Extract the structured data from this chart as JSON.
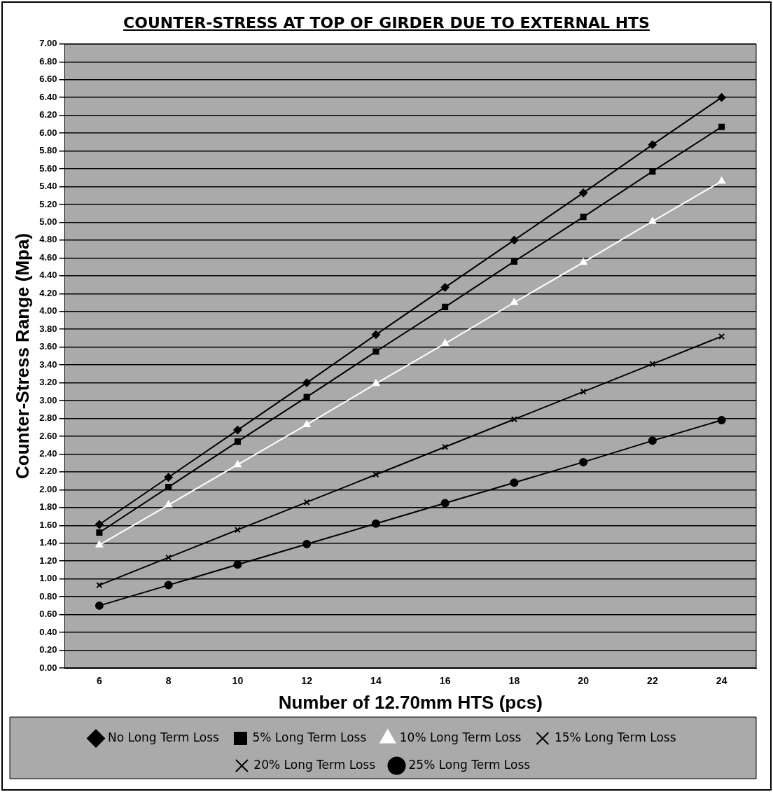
{
  "chart_data": {
    "type": "line",
    "title": "COUNTER-STRESS AT TOP OF GIRDER DUE TO EXTERNAL HTS",
    "xlabel": "Number of 12.70mm HTS (pcs)",
    "ylabel": "Counter-Stress Range (Mpa)",
    "categories": [
      "6",
      "8",
      "10",
      "12",
      "14",
      "16",
      "18",
      "20",
      "22",
      "24"
    ],
    "series": [
      {
        "name": "No Long Term Loss",
        "color": "#000000",
        "marker": "diamond",
        "values": [
          1.61,
          2.14,
          2.67,
          3.2,
          3.74,
          4.27,
          4.8,
          5.33,
          5.87,
          6.4
        ]
      },
      {
        "name": "5% Long Term Loss",
        "color": "#000000",
        "marker": "square",
        "values": [
          1.52,
          2.03,
          2.54,
          3.04,
          3.55,
          4.05,
          4.56,
          5.06,
          5.57,
          6.07
        ]
      },
      {
        "name": "10% Long Term Loss",
        "color": "#ffffff",
        "marker": "triangle",
        "values": [
          1.38,
          1.83,
          2.28,
          2.73,
          3.19,
          3.64,
          4.1,
          4.55,
          5.01,
          5.46
        ]
      },
      {
        "name": "15% Long Term Loss",
        "color": "#000000",
        "marker": "cross",
        "values": [
          null,
          null,
          null,
          null,
          null,
          null,
          null,
          null,
          null,
          null
        ]
      },
      {
        "name": "20% Long Term Loss",
        "color": "#000000",
        "marker": "cross",
        "values": [
          0.93,
          1.24,
          1.55,
          1.86,
          2.17,
          2.48,
          2.79,
          3.1,
          3.41,
          3.72
        ]
      },
      {
        "name": "25% Long Term Loss",
        "color": "#000000",
        "marker": "circle",
        "values": [
          0.7,
          0.93,
          1.16,
          1.39,
          1.62,
          1.85,
          2.08,
          2.31,
          2.55,
          2.78
        ]
      }
    ],
    "ylim": [
      0,
      7
    ],
    "yticks": [
      {
        "value": 0,
        "label": "0.00"
      },
      {
        "value": 0.2,
        "label": "0.20"
      },
      {
        "value": 0.4,
        "label": "0.40"
      },
      {
        "value": 0.6,
        "label": "0.60"
      },
      {
        "value": 0.8,
        "label": "0.80"
      },
      {
        "value": 1,
        "label": "1.00"
      },
      {
        "value": 1.2,
        "label": "1.20"
      },
      {
        "value": 1.4,
        "label": "1.40"
      },
      {
        "value": 1.6,
        "label": "1.60"
      },
      {
        "value": 1.8,
        "label": "1.80"
      },
      {
        "value": 2,
        "label": "2.00"
      },
      {
        "value": 2.2,
        "label": "2.20"
      },
      {
        "value": 2.4,
        "label": "2.40"
      },
      {
        "value": 2.6,
        "label": "2.60"
      },
      {
        "value": 2.8,
        "label": "2.80"
      },
      {
        "value": 3,
        "label": "3.00"
      },
      {
        "value": 3.2,
        "label": "3.20"
      },
      {
        "value": 3.4,
        "label": "3.40"
      },
      {
        "value": 3.6,
        "label": "3.60"
      },
      {
        "value": 3.8,
        "label": "3.80"
      },
      {
        "value": 4,
        "label": "4.00"
      },
      {
        "value": 4.2,
        "label": "4.20"
      },
      {
        "value": 4.4,
        "label": "4.40"
      },
      {
        "value": 4.6,
        "label": "4.60"
      },
      {
        "value": 4.8,
        "label": "4.80"
      },
      {
        "value": 5,
        "label": "5.00"
      },
      {
        "value": 5.2,
        "label": "5.20"
      },
      {
        "value": 5.4,
        "label": "5.40"
      },
      {
        "value": 5.6,
        "label": "5.60"
      },
      {
        "value": 5.8,
        "label": "5.80"
      },
      {
        "value": 6,
        "label": "6.00"
      },
      {
        "value": 6.2,
        "label": "6.20"
      },
      {
        "value": 6.4,
        "label": "6.40"
      },
      {
        "value": 6.6,
        "label": "6.60"
      },
      {
        "value": 6.8,
        "label": "6.80"
      },
      {
        "value": 7,
        "label": "7.00"
      }
    ],
    "grid": "y",
    "legend": "bottom",
    "line_style": "solid"
  }
}
